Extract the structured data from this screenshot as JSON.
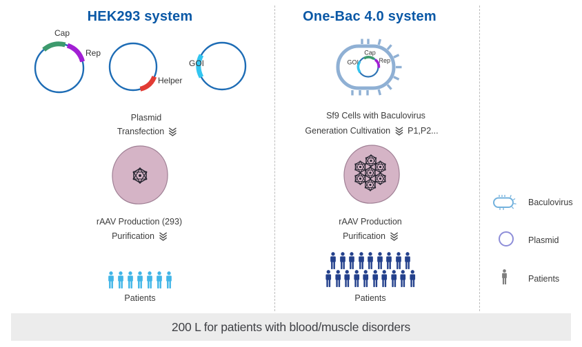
{
  "header": {
    "left_title": "HEK293 system",
    "right_title": "One-Bac 4.0 system"
  },
  "hek": {
    "plasmid1": {
      "cap": "Cap",
      "rep": "Rep"
    },
    "plasmid2": {
      "helper": "Helper"
    },
    "plasmid3": {
      "goi": "GOI"
    },
    "step1_line1": "Plasmid",
    "step1_line2": "Transfection",
    "step2_line1": "rAAV Production (293)",
    "step2_line2": "Purification",
    "patients_count": 7,
    "patients_label": "Patients"
  },
  "onebac": {
    "labels": {
      "cap": "Cap",
      "rep": "Rep",
      "goi": "GOI"
    },
    "step1_line1": "Sf9 Cells with Baculovirus",
    "step1_line2": "Generation Cultivation",
    "passages": "P1,P2...",
    "step2_line1": "rAAV Production",
    "step2_line2": "Purification",
    "patients_rows": [
      9,
      10
    ],
    "patients_label": "Patients",
    "capsid_count": 7
  },
  "legend": {
    "baculovirus": "Baculovirus",
    "plasmid": "Plasmid",
    "patients": "Patients",
    "icon_count": 1
  },
  "footer": {
    "text": "200 L for patients with blood/muscle disorders"
  },
  "colors": {
    "title_blue": "#0a58a6",
    "plasmid_ring": "#1d6cb5",
    "cap_green": "#3d9a6d",
    "rep_purple": "#a21fd4",
    "helper_red": "#e23b34",
    "goi_cyan": "#32c5f0",
    "baculovirus_blue": "#8fb0d4",
    "legend_baculovirus": "#72b1dd",
    "legend_plasmid": "#8d8dd8",
    "cell_fill": "#d5b4c6",
    "cell_border": "#9f7f94",
    "capsid_dark": "#23232e",
    "patients_hek": "#41b5e7",
    "patients_onebac": "#24418c",
    "patients_legend": "#7e7e7e",
    "text_dark": "#3b3b3b",
    "footer_bg": "#ececec"
  }
}
